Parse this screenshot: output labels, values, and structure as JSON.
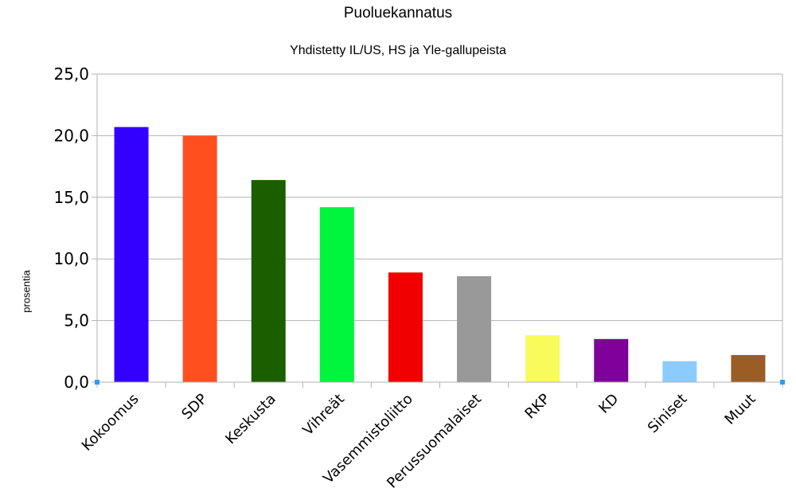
{
  "chart_data": {
    "type": "bar",
    "title": "Puoluekannatus",
    "subtitle": "Yhdistetty IL/US, HS ja Yle-gallupeista",
    "xlabel": "",
    "ylabel": "prosentia",
    "ylim": [
      0,
      25
    ],
    "yticks": [
      "0,0",
      "5,0",
      "10,0",
      "15,0",
      "20,0",
      "25,0"
    ],
    "ytick_values": [
      0,
      5,
      10,
      15,
      20,
      25
    ],
    "grid": true,
    "legend": "none",
    "categories": [
      "Kokoomus",
      "SDP",
      "Keskusta",
      "Vihreät",
      "Vasemmistoliitto",
      "Perussuomalaiset",
      "RKP",
      "KD",
      "Siniset",
      "Muut"
    ],
    "values": [
      20.7,
      20.0,
      16.4,
      14.2,
      8.9,
      8.6,
      3.8,
      3.5,
      1.7,
      2.2
    ],
    "colors": [
      "#3300ff",
      "#ff4f1f",
      "#1a5e00",
      "#00f53d",
      "#f00000",
      "#999999",
      "#f9fb5c",
      "#7f009a",
      "#8ccbff",
      "#9c5c26"
    ]
  }
}
